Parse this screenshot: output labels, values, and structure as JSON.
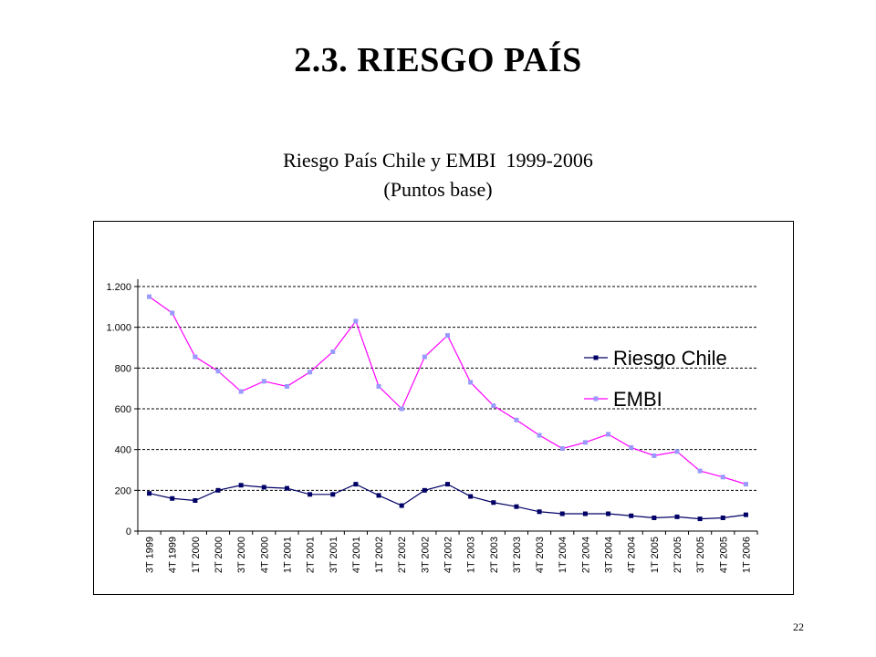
{
  "slide": {
    "title": "2.3. RIESGO PAÍS",
    "page_number": "22"
  },
  "chart_data": {
    "type": "line",
    "title": "Riesgo País Chile y EMBI  1999-2006",
    "subtitle": "(Puntos base)",
    "xlabel": "",
    "ylabel": "",
    "ylim": [
      0,
      1200
    ],
    "yticks": [
      0,
      200,
      400,
      600,
      800,
      1000,
      1200
    ],
    "ytick_labels": [
      "0",
      "200",
      "400",
      "600",
      "800",
      "1.000",
      "1.200"
    ],
    "grid": "horizontal dashed",
    "legend_position": "right",
    "categories": [
      "3T 1999",
      "4T 1999",
      "1T 2000",
      "2T 2000",
      "3T 2000",
      "4T 2000",
      "1T 2001",
      "2T 2001",
      "3T 2001",
      "4T 2001",
      "1T 2002",
      "2T 2002",
      "3T 2002",
      "4T 2002",
      "1T 2003",
      "2T 2003",
      "3T 2003",
      "4T 2003",
      "1T 2004",
      "2T 2004",
      "3T 2004",
      "4T 2004",
      "1T 2005",
      "2T 2005",
      "3T 2005",
      "4T 2005",
      "1T 2006"
    ],
    "series": [
      {
        "name": "Riesgo Chile",
        "color": "#000066",
        "marker": "square",
        "values": [
          185,
          160,
          150,
          200,
          225,
          215,
          210,
          180,
          180,
          230,
          175,
          125,
          200,
          230,
          170,
          140,
          120,
          95,
          85,
          85,
          85,
          75,
          65,
          70,
          60,
          65,
          80
        ]
      },
      {
        "name": "EMBI",
        "color": "#ff00ff",
        "marker_color": "#9999ff",
        "marker": "square",
        "values": [
          1150,
          1070,
          855,
          785,
          685,
          735,
          710,
          780,
          880,
          1030,
          710,
          600,
          855,
          960,
          730,
          615,
          545,
          470,
          405,
          435,
          475,
          410,
          370,
          390,
          295,
          265,
          230
        ]
      }
    ]
  }
}
